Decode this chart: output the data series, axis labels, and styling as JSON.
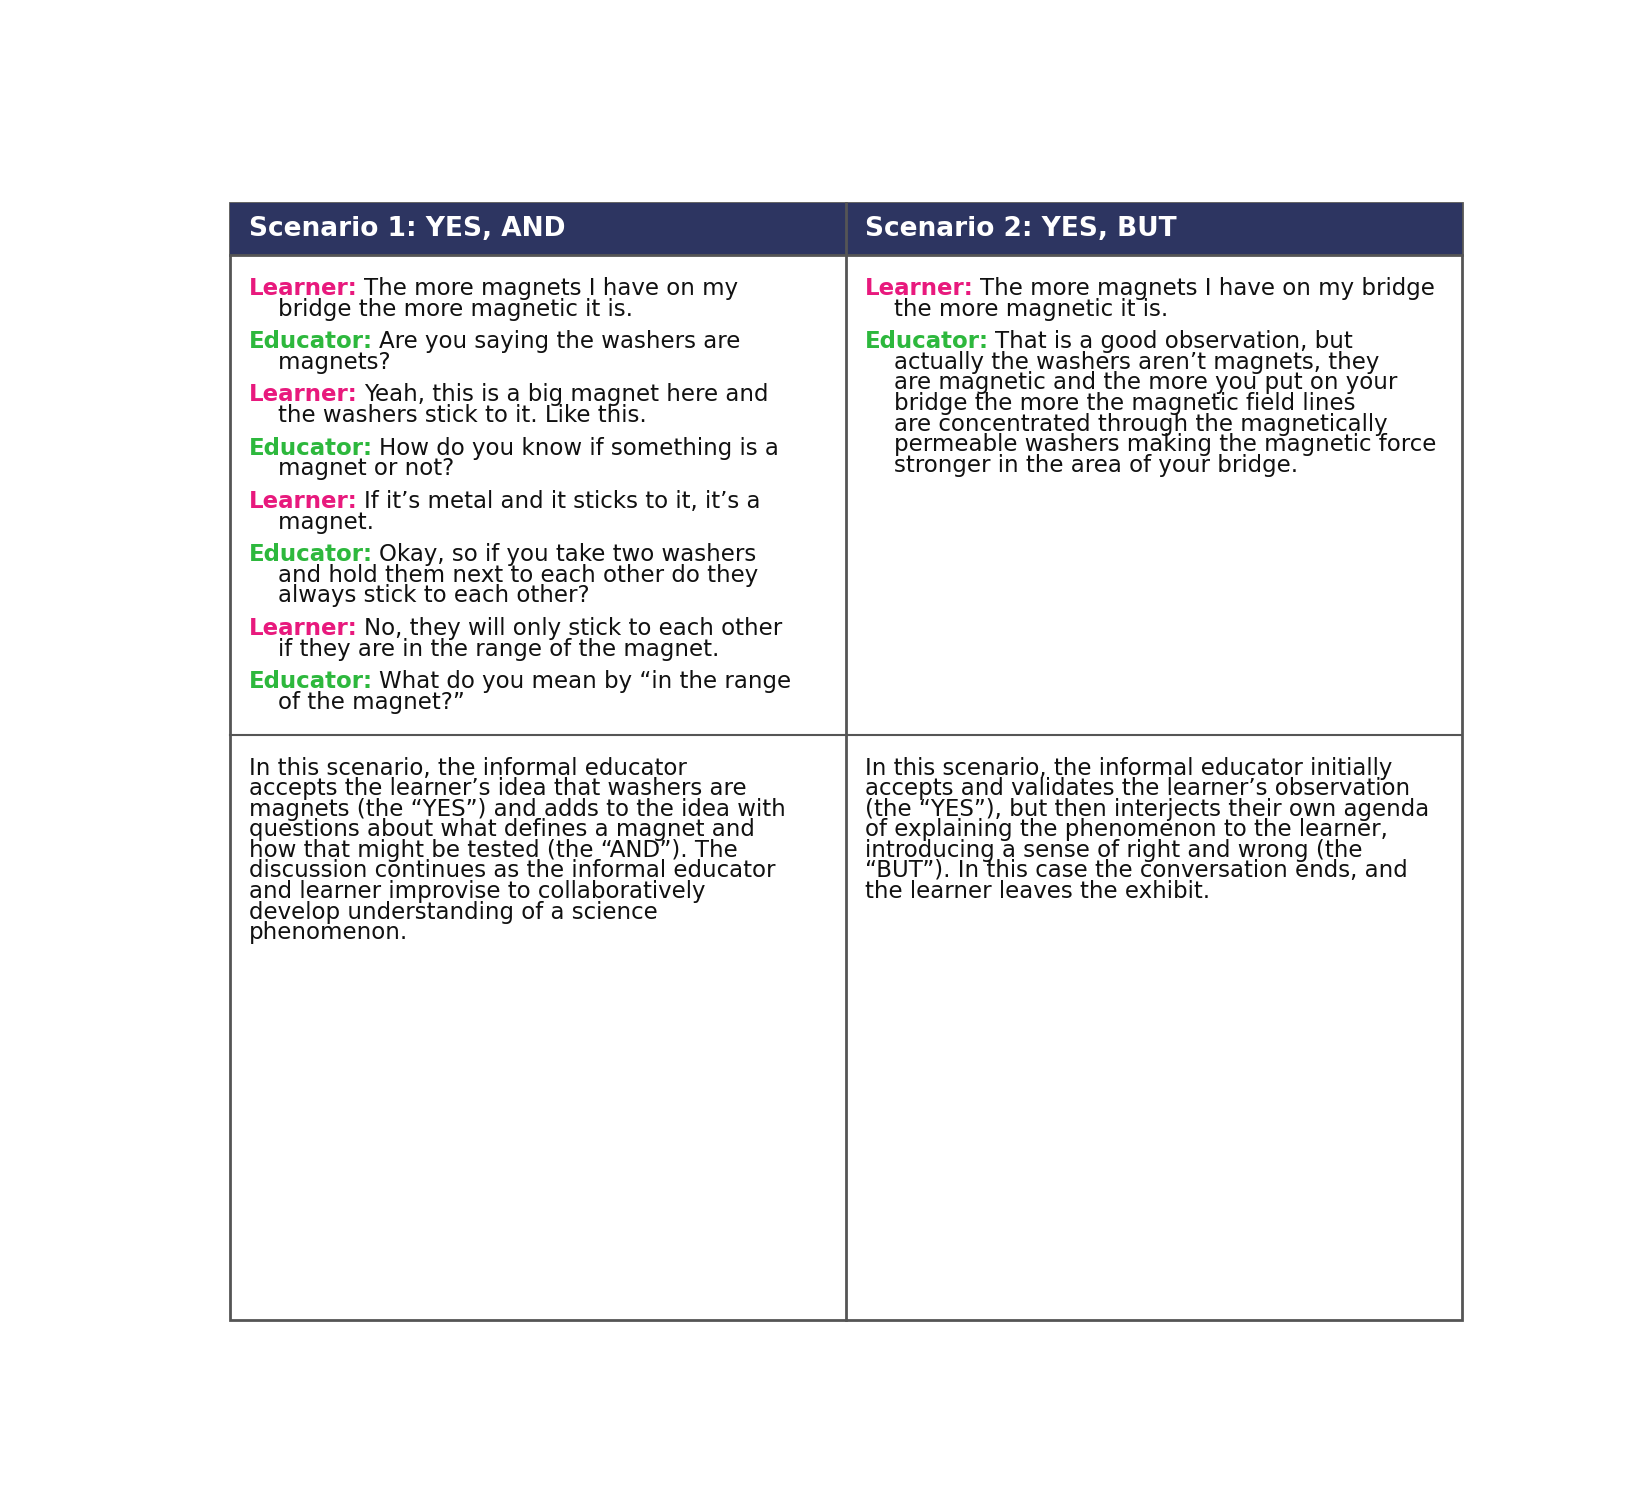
{
  "header_bg": "#2d3561",
  "header_text_color": "#ffffff",
  "body_bg": "#ffffff",
  "border_color": "#555555",
  "learner_color": "#e8197d",
  "educator_color": "#2db83d",
  "body_text_color": "#111111",
  "header_fontsize": 19,
  "body_fontsize": 16.5,
  "col1_header": "Scenario 1: YES, AND",
  "col2_header": "Scenario 2: YES, BUT",
  "col1_dialogue": [
    {
      "speaker": "Learner",
      "text": "The more magnets I have on my\n    bridge the more magnetic it is."
    },
    {
      "speaker": "Educator",
      "text": "Are you saying the washers are\n    magnets?"
    },
    {
      "speaker": "Learner",
      "text": "Yeah, this is a big magnet here and\n    the washers stick to it. Like this."
    },
    {
      "speaker": "Educator",
      "text": "How do you know if something is a\n    magnet or not?"
    },
    {
      "speaker": "Learner",
      "text": "If it’s metal and it sticks to it, it’s a\n    magnet."
    },
    {
      "speaker": "Educator",
      "text": "Okay, so if you take two washers\n    and hold them next to each other do they\n    always stick to each other?"
    },
    {
      "speaker": "Learner",
      "text": "No, they will only stick to each other\n    if they are in the range of the magnet."
    },
    {
      "speaker": "Educator",
      "text": "What do you mean by “in the range\n    of the magnet?”"
    }
  ],
  "col2_dialogue": [
    {
      "speaker": "Learner",
      "text": "The more magnets I have on my bridge\n    the more magnetic it is."
    },
    {
      "speaker": "Educator",
      "text": "That is a good observation, but\n    actually the washers aren’t magnets, they\n    are magnetic and the more you put on your\n    bridge the more the magnetic field lines\n    are concentrated through the magnetically\n    permeable washers making the magnetic force\n    stronger in the area of your bridge."
    }
  ],
  "col1_summary": "In this scenario, the informal educator\naccepts the learner’s idea that washers are\nmagnets (the “YES”) and adds to the idea with\nquestions about what defines a magnet and\nhow that might be tested (the “AND”). The\ndiscussion continues as the informal educator\nand learner improvise to collaboratively\ndevelop understanding of a science\nphenomenon.",
  "col2_summary": "In this scenario, the informal educator initially\naccepts and validates the learner’s observation\n(the “YES”), but then interjects their own agenda\nof explaining the phenomenon to the learner,\nintroducing a sense of right and wrong (the\n“BUT”). In this case the conversation ends, and\nthe learner leaves the exhibit."
}
